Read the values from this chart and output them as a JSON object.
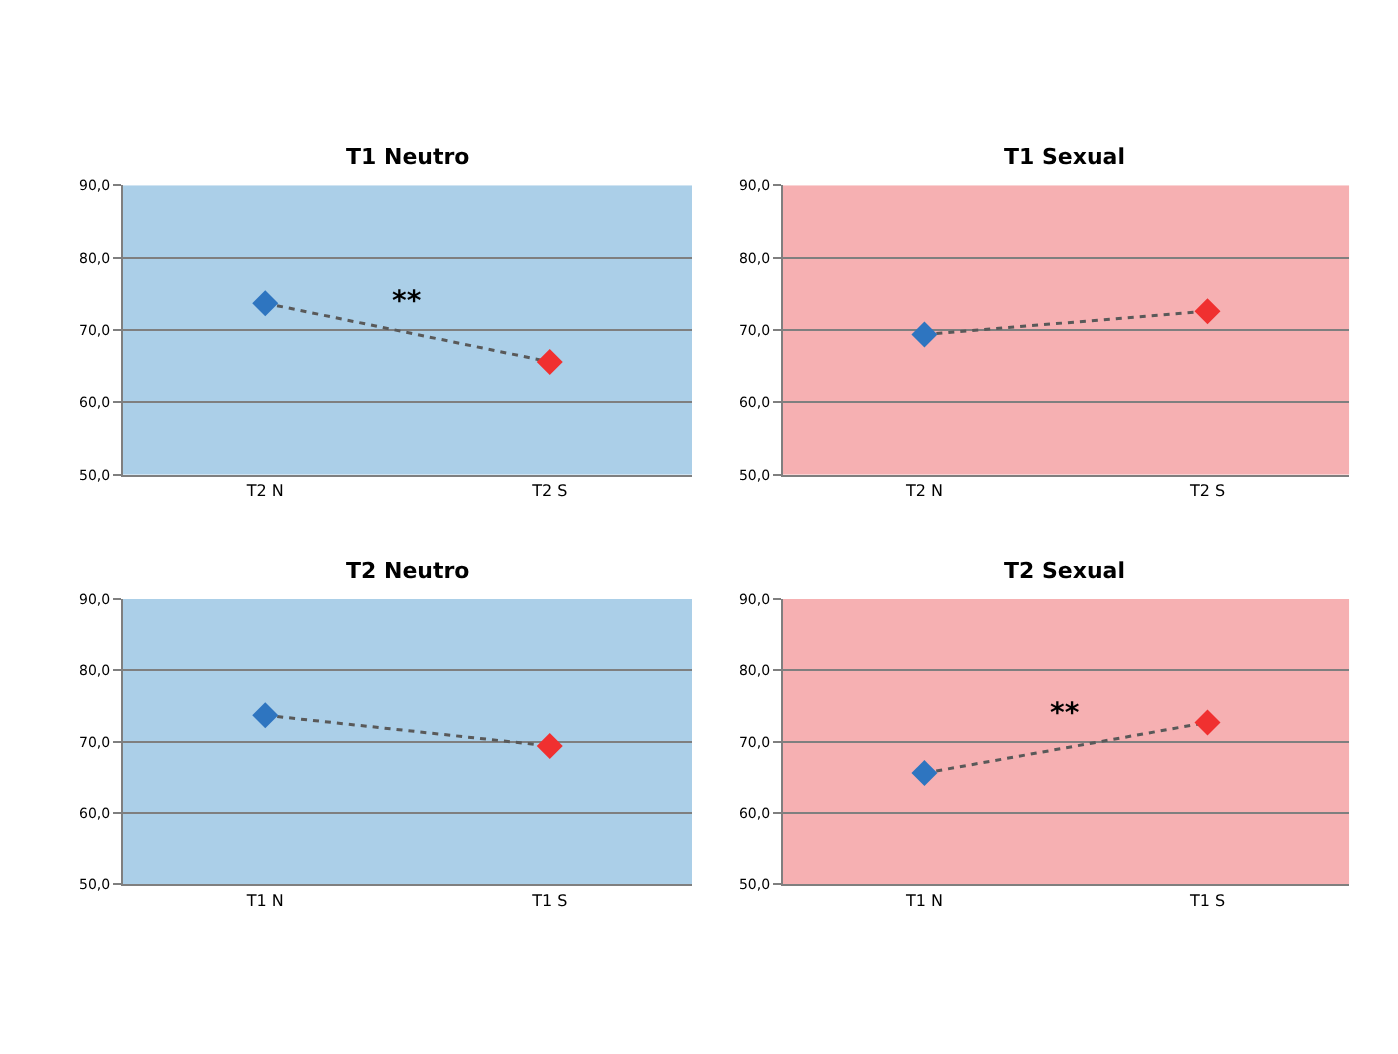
{
  "chart_data": [
    {
      "type": "line",
      "title": "T1 Neutro",
      "categories": [
        "T2 N",
        "T2 S"
      ],
      "series": [
        {
          "color": "#595959",
          "colors": [
            "#2e75c0",
            "#f03030"
          ],
          "values": [
            73.7,
            65.6
          ]
        }
      ],
      "ylim": [
        50,
        90
      ],
      "yticks": [
        {
          "value": 50,
          "label": "50,0"
        },
        {
          "value": 60,
          "label": "60,0"
        },
        {
          "value": 70,
          "label": "70,0"
        },
        {
          "value": 80,
          "label": "80,0"
        },
        {
          "value": 90,
          "label": "90,0"
        }
      ],
      "grid": "y",
      "marker": "diamond",
      "line_style": "dotted",
      "bands": [
        {
          "axis": "y",
          "from": 50,
          "to": 90,
          "color": "#abcfe8"
        }
      ],
      "annotations": [
        "**"
      ]
    },
    {
      "type": "line",
      "title": "T1 Sexual",
      "categories": [
        "T2 N",
        "T2 S"
      ],
      "series": [
        {
          "color": "#595959",
          "colors": [
            "#2e75c0",
            "#f03030"
          ],
          "values": [
            69.4,
            72.6
          ]
        }
      ],
      "ylim": [
        50,
        90
      ],
      "yticks": [
        {
          "value": 50,
          "label": "50,0"
        },
        {
          "value": 60,
          "label": "60,0"
        },
        {
          "value": 70,
          "label": "70,0"
        },
        {
          "value": 80,
          "label": "80,0"
        },
        {
          "value": 90,
          "label": "90,0"
        }
      ],
      "grid": "y",
      "marker": "diamond",
      "line_style": "dotted",
      "bands": [
        {
          "axis": "y",
          "from": 50,
          "to": 90,
          "color": "#f6b0b2"
        }
      ]
    },
    {
      "type": "line",
      "title": "T2 Neutro",
      "categories": [
        "T1 N",
        "T1 S"
      ],
      "series": [
        {
          "color": "#595959",
          "colors": [
            "#2e75c0",
            "#f03030"
          ],
          "values": [
            73.7,
            69.4
          ]
        }
      ],
      "ylim": [
        50,
        90
      ],
      "yticks": [
        {
          "value": 50,
          "label": "50,0"
        },
        {
          "value": 60,
          "label": "60,0"
        },
        {
          "value": 70,
          "label": "70,0"
        },
        {
          "value": 80,
          "label": "80,0"
        },
        {
          "value": 90,
          "label": "90,0"
        }
      ],
      "grid": "y",
      "marker": "diamond",
      "line_style": "dotted",
      "bands": [
        {
          "axis": "y",
          "from": 50,
          "to": 90,
          "color": "#abcfe8"
        }
      ]
    },
    {
      "type": "line",
      "title": "T2 Sexual",
      "categories": [
        "T1 N",
        "T1 S"
      ],
      "series": [
        {
          "color": "#595959",
          "colors": [
            "#2e75c0",
            "#f03030"
          ],
          "values": [
            65.6,
            72.7
          ]
        }
      ],
      "ylim": [
        50,
        90
      ],
      "yticks": [
        {
          "value": 50,
          "label": "50,0"
        },
        {
          "value": 60,
          "label": "60,0"
        },
        {
          "value": 70,
          "label": "70,0"
        },
        {
          "value": 80,
          "label": "80,0"
        },
        {
          "value": 90,
          "label": "90,0"
        }
      ],
      "grid": "y",
      "marker": "diamond",
      "line_style": "dotted",
      "bands": [
        {
          "axis": "y",
          "from": 50,
          "to": 90,
          "color": "#f6b0b2"
        }
      ],
      "annotations": [
        "**"
      ]
    }
  ]
}
